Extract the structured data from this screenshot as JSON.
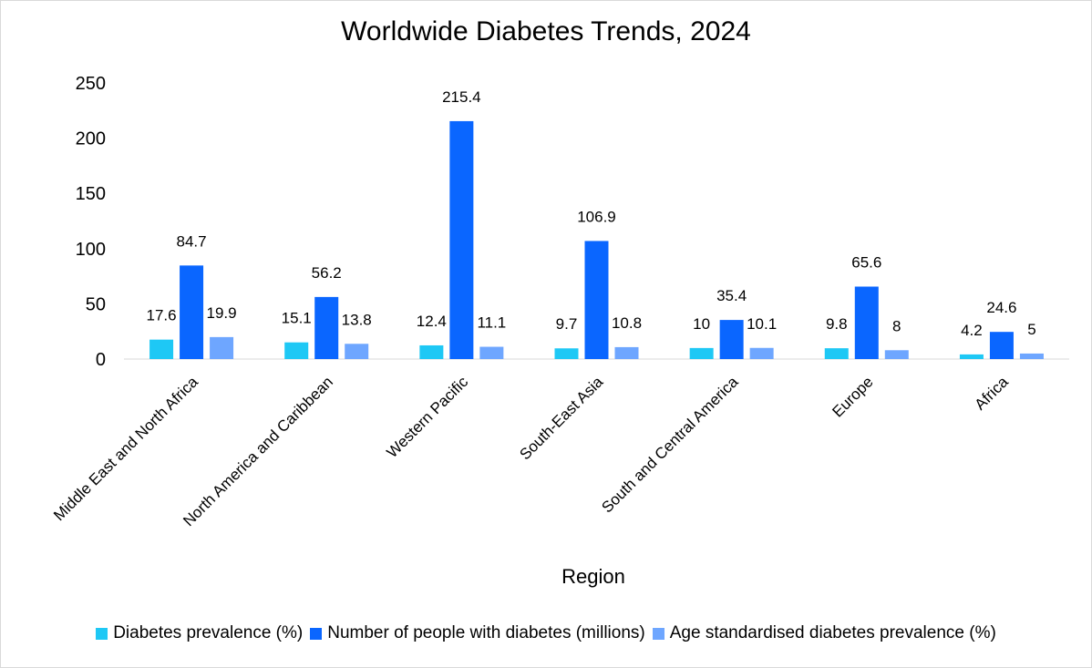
{
  "chart_data": {
    "type": "bar",
    "title": "Worldwide Diabetes Trends, 2024",
    "xlabel": "Region",
    "ylabel": "",
    "ylim": [
      0,
      250
    ],
    "yticks": [
      0,
      50,
      100,
      150,
      200,
      250
    ],
    "grid": false,
    "legend_position": "bottom",
    "categories": [
      "Middle East and North Africa",
      "North America and Caribbean",
      "Western Pacific",
      "South-East Asia",
      "South and Central America",
      "Europe",
      "Africa"
    ],
    "series": [
      {
        "name": "Diabetes prevalence (%)",
        "color": "#1ec8f5",
        "values": [
          17.6,
          15.1,
          12.4,
          9.7,
          10,
          9.8,
          4.2
        ]
      },
      {
        "name": "Number of people with diabetes (millions)",
        "color": "#0a66ff",
        "values": [
          84.7,
          56.2,
          215.4,
          106.9,
          35.4,
          65.6,
          24.6
        ]
      },
      {
        "name": "Age standardised diabetes prevalence (%)",
        "color": "#6ea6ff",
        "values": [
          19.9,
          13.8,
          11.1,
          10.8,
          10.1,
          8,
          5
        ]
      }
    ]
  }
}
